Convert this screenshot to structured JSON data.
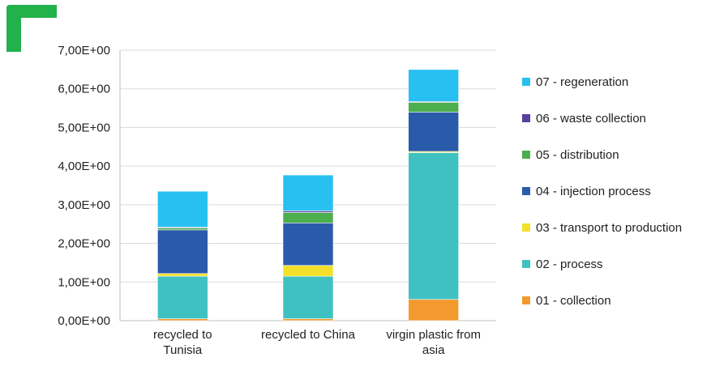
{
  "chart_data": {
    "type": "bar",
    "stacked": true,
    "categories": [
      [
        "recycled to",
        "Tunisia"
      ],
      [
        "recycled to China"
      ],
      [
        "virgin plastic from",
        "asia"
      ]
    ],
    "ylim": [
      0,
      7
    ],
    "yticks": [
      "0,00E+00",
      "1,00E+00",
      "2,00E+00",
      "3,00E+00",
      "4,00E+00",
      "5,00E+00",
      "6,00E+00",
      "7,00E+00"
    ],
    "grid": true,
    "legend_position": "right",
    "series": [
      {
        "name": "01 - collection",
        "color": "#f39a2e",
        "values": [
          0.05,
          0.05,
          0.55
        ]
      },
      {
        "name": "02 - process",
        "color": "#3fc1c1",
        "values": [
          1.1,
          1.1,
          3.8
        ]
      },
      {
        "name": "03 - transport to production",
        "color": "#f4e02a",
        "values": [
          0.07,
          0.28,
          0.03
        ]
      },
      {
        "name": "04 - injection process",
        "color": "#2a5aaa",
        "values": [
          1.13,
          1.1,
          1.02
        ]
      },
      {
        "name": "05 - distribution",
        "color": "#4cae4c",
        "values": [
          0.05,
          0.27,
          0.25
        ]
      },
      {
        "name": "06 - waste collection",
        "color": "#5b3fa0",
        "values": [
          0.02,
          0.04,
          0.02
        ]
      },
      {
        "name": "07 - regeneration",
        "color": "#27c0f0",
        "values": [
          0.93,
          0.93,
          0.83
        ]
      }
    ]
  },
  "decor": {
    "corner_mark_color": "#22b24c"
  }
}
